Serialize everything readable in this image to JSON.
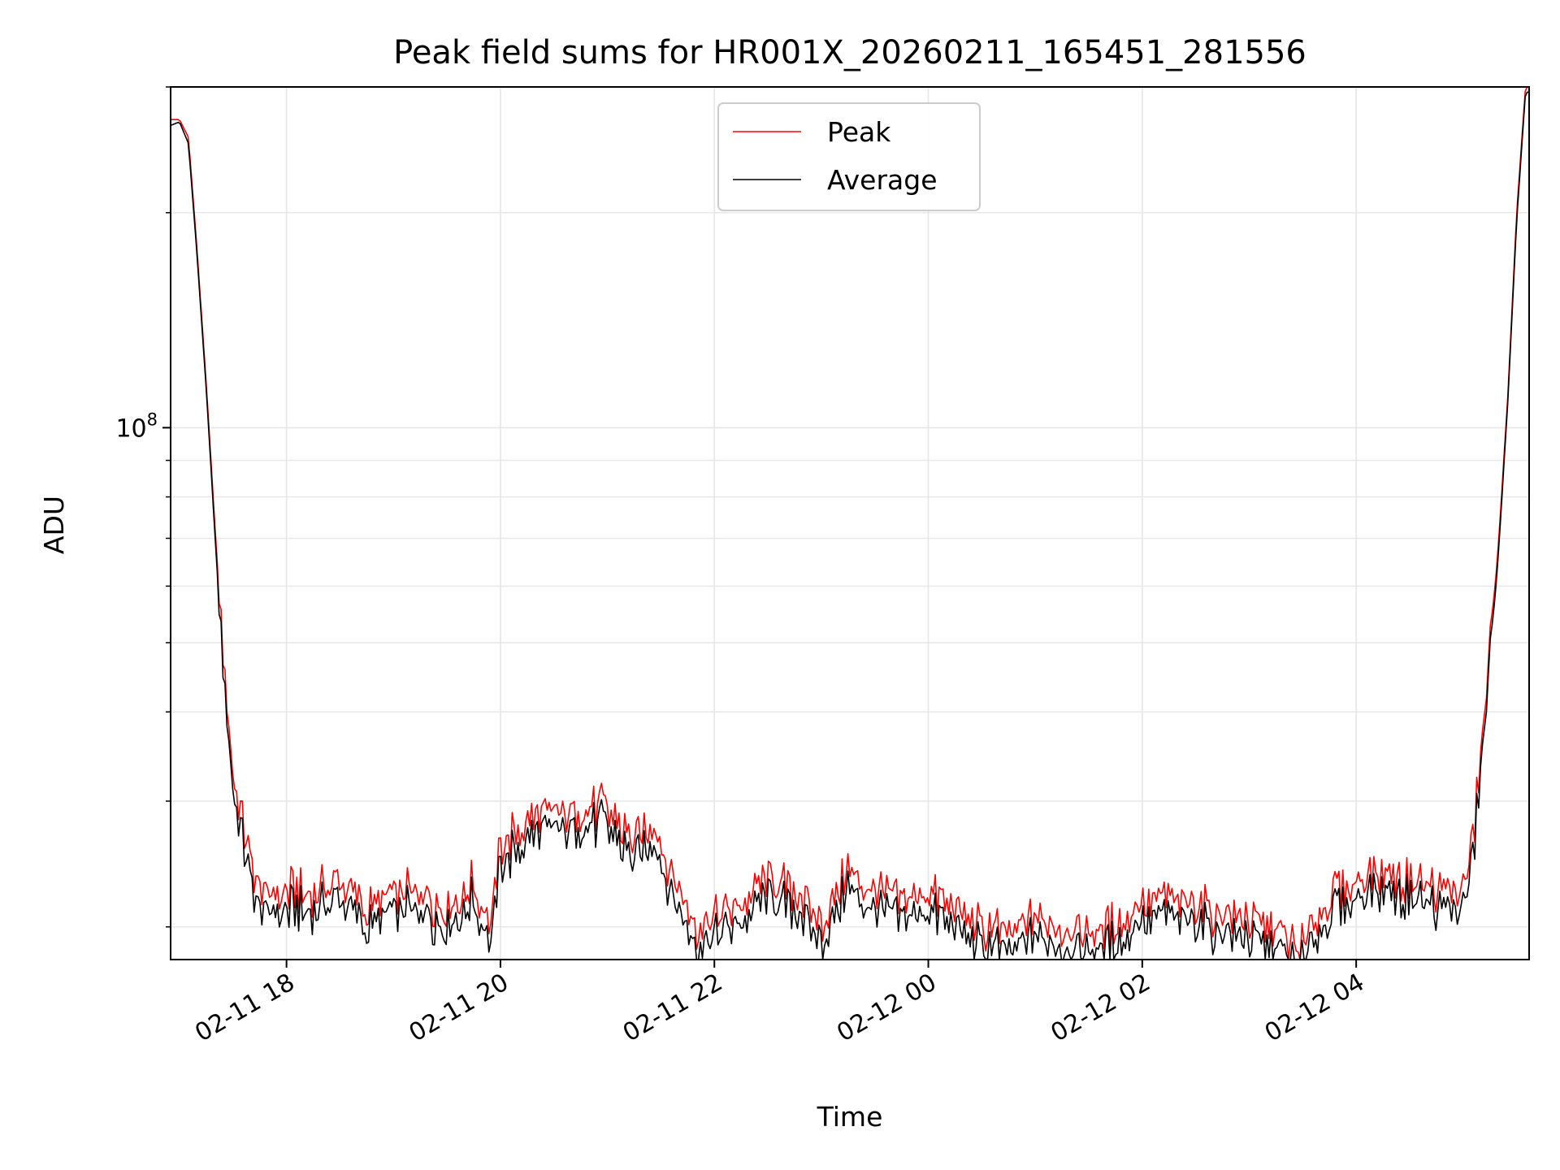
{
  "chart_data": {
    "type": "line",
    "title": "Peak field sums for HR001X_20260211_165451_281556",
    "xlabel": "Time",
    "ylabel": "ADU",
    "y_scale": "log",
    "ylim": [
      18000000,
      300000000
    ],
    "xlim": [
      "2026-02-11 16:55",
      "2026-02-12 05:37"
    ],
    "grid": true,
    "legend_position": "top-center",
    "x_ticks": [
      {
        "t": "2026-02-11 18:00",
        "label": "02-11 18"
      },
      {
        "t": "2026-02-11 20:00",
        "label": "02-11 20"
      },
      {
        "t": "2026-02-11 22:00",
        "label": "02-11 22"
      },
      {
        "t": "2026-02-12 00:00",
        "label": "02-12 00"
      },
      {
        "t": "2026-02-12 02:00",
        "label": "02-12 02"
      },
      {
        "t": "2026-02-12 04:00",
        "label": "02-12 04"
      }
    ],
    "y_ticks": [
      {
        "value": 100000000,
        "label": "10",
        "exponent": "8"
      }
    ],
    "x": [
      "2026-02-11 16:55",
      "2026-02-11 17:00",
      "2026-02-11 17:05",
      "2026-02-11 17:10",
      "2026-02-11 17:15",
      "2026-02-11 17:20",
      "2026-02-11 17:25",
      "2026-02-11 17:30",
      "2026-02-11 17:35",
      "2026-02-11 17:40",
      "2026-02-11 17:45",
      "2026-02-11 17:50",
      "2026-02-11 18:00",
      "2026-02-11 18:15",
      "2026-02-11 18:30",
      "2026-02-11 18:45",
      "2026-02-11 19:00",
      "2026-02-11 19:15",
      "2026-02-11 19:30",
      "2026-02-11 19:45",
      "2026-02-11 19:55",
      "2026-02-11 20:00",
      "2026-02-11 20:15",
      "2026-02-11 20:30",
      "2026-02-11 20:45",
      "2026-02-11 21:00",
      "2026-02-11 21:15",
      "2026-02-11 21:25",
      "2026-02-11 21:40",
      "2026-02-11 21:50",
      "2026-02-11 22:00",
      "2026-02-11 22:15",
      "2026-02-11 22:30",
      "2026-02-11 22:45",
      "2026-02-11 23:00",
      "2026-02-11 23:15",
      "2026-02-11 23:30",
      "2026-02-11 23:45",
      "2026-02-12 00:00",
      "2026-02-12 00:15",
      "2026-02-12 00:30",
      "2026-02-12 00:45",
      "2026-02-12 01:00",
      "2026-02-12 01:15",
      "2026-02-12 01:30",
      "2026-02-12 01:45",
      "2026-02-12 02:00",
      "2026-02-12 02:15",
      "2026-02-12 02:30",
      "2026-02-12 02:45",
      "2026-02-12 03:00",
      "2026-02-12 03:15",
      "2026-02-12 03:30",
      "2026-02-12 03:45",
      "2026-02-12 04:00",
      "2026-02-12 04:15",
      "2026-02-12 04:30",
      "2026-02-12 04:45",
      "2026-02-12 05:00",
      "2026-02-12 05:05",
      "2026-02-12 05:10",
      "2026-02-12 05:15",
      "2026-02-12 05:20",
      "2026-02-12 05:25",
      "2026-02-12 05:30",
      "2026-02-12 05:35"
    ],
    "series": [
      {
        "name": "Peak",
        "color": "#ff0000",
        "values": [
          270000000,
          270000000,
          255000000,
          175000000,
          115000000,
          72000000,
          46000000,
          32000000,
          28000000,
          25000000,
          23000000,
          22000000,
          22500000,
          22000000,
          23500000,
          21000000,
          22000000,
          22500000,
          21000000,
          23000000,
          20500000,
          26000000,
          28000000,
          29000000,
          29500000,
          29000000,
          26000000,
          28000000,
          23000000,
          20000000,
          20500000,
          21500000,
          23500000,
          22500000,
          20500000,
          24000000,
          22500000,
          21500000,
          22500000,
          21000000,
          20000000,
          19500000,
          20500000,
          20000000,
          19500000,
          20000000,
          21500000,
          22000000,
          21500000,
          21000000,
          20500000,
          20000000,
          18800000,
          22000000,
          23000000,
          24000000,
          23000000,
          22500000,
          22500000,
          26000000,
          34000000,
          48000000,
          70000000,
          110000000,
          200000000,
          300000000
        ]
      },
      {
        "name": "Average",
        "color": "#000000",
        "values": [
          265000000,
          268000000,
          250000000,
          172000000,
          113000000,
          70000000,
          44000000,
          30500000,
          26500000,
          23500000,
          21500000,
          20800000,
          21200000,
          20800000,
          22200000,
          19800000,
          20800000,
          21200000,
          19800000,
          21800000,
          19300000,
          24500000,
          26500000,
          27500000,
          28000000,
          27500000,
          24500000,
          26500000,
          21500000,
          18800000,
          19300000,
          20300000,
          22200000,
          21200000,
          19300000,
          22700000,
          21200000,
          20300000,
          21200000,
          19800000,
          18800000,
          18400000,
          19300000,
          18800000,
          18400000,
          18800000,
          20300000,
          20800000,
          20300000,
          19800000,
          19300000,
          18800000,
          17800000,
          20800000,
          21800000,
          22700000,
          21800000,
          21200000,
          21200000,
          24500000,
          32500000,
          46000000,
          68000000,
          108000000,
          195000000,
          295000000
        ]
      }
    ]
  }
}
